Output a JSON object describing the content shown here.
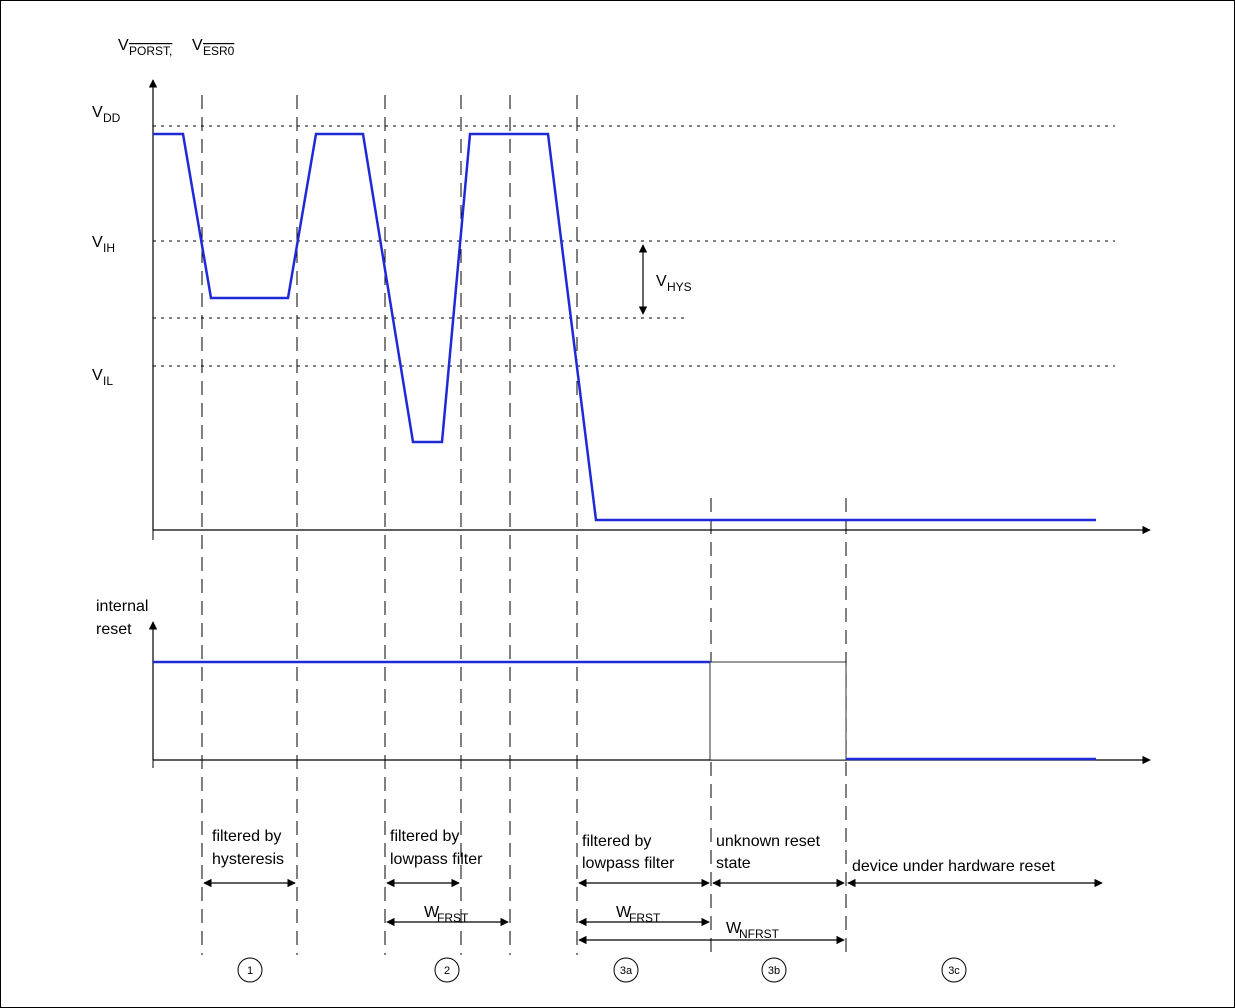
{
  "y_axis_label": {
    "v1": "V",
    "v1_sub": "PORST,",
    "v2": "V",
    "v2_sub": "ESR0"
  },
  "levels": {
    "vdd": {
      "main": "V",
      "sub": "DD"
    },
    "vih": {
      "main": "V",
      "sub": "IH"
    },
    "vil": {
      "main": "V",
      "sub": "IL"
    },
    "vhys": {
      "main": "V",
      "sub": "HYS"
    }
  },
  "internal_reset_label": {
    "line1": "internal",
    "line2": "reset"
  },
  "regions": {
    "r1": {
      "line1": "filtered by",
      "line2": "hysteresis",
      "marker": "1"
    },
    "r2": {
      "line1": "filtered by",
      "line2": "lowpass filter",
      "marker": "2",
      "width": {
        "main": "W",
        "sub": "FRST"
      }
    },
    "r3a": {
      "line1": "filtered by",
      "line2": "lowpass filter",
      "marker": "3a",
      "width": {
        "main": "W",
        "sub": "FRST"
      }
    },
    "r3b": {
      "line1": "unknown reset",
      "line2": "state",
      "marker": "3b",
      "width": {
        "main": "W",
        "sub": "NFRST"
      }
    },
    "r3c": {
      "line1": "device under hardware reset",
      "marker": "3c"
    }
  },
  "colors": {
    "signal": "#1f2ad6",
    "axis": "#000000",
    "border": "#000000"
  }
}
